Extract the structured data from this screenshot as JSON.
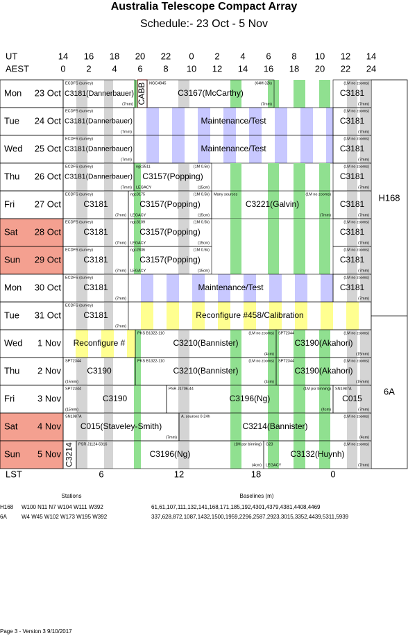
{
  "title": "Australia Telescope Compact Array",
  "subtitle": "Schedule:- 23 Oct - 5  Nov",
  "time_axis": {
    "ut_label": "UT",
    "aest_label": "AEST",
    "ut": [
      "14",
      "16",
      "18",
      "20",
      "22",
      "0",
      "2",
      "4",
      "6",
      "8",
      "10",
      "12",
      "14"
    ],
    "aest": [
      "0",
      "2",
      "4",
      "6",
      "8",
      "10",
      "12",
      "14",
      "16",
      "18",
      "20",
      "22",
      "24"
    ]
  },
  "days": [
    {
      "day": "Mon",
      "date": "23 Oct",
      "weekend": false,
      "blocks": [
        {
          "top": "ECDFS (survey)",
          "label": "C3181(Dannerbauer)",
          "bottom_right": "(7mm)"
        },
        {
          "label": "CABB",
          "vertical": true
        },
        {
          "top": "NGC4945",
          "top_right": "(64M 32k)",
          "label": "C3167(McCarthy)",
          "bottom_right": "(7mm)"
        },
        {
          "top_right": "(1M no zooms)",
          "label": "C3181",
          "bottom_right": "(7mm)"
        }
      ]
    },
    {
      "day": "Tue",
      "date": "24 Oct",
      "weekend": false,
      "blocks": [
        {
          "top": "ECDFS (survey)",
          "label": "C3181(Dannerbauer)",
          "bottom_right": "(7mm)"
        },
        {
          "label": "Maintenance/Test"
        },
        {
          "top_right": "(1M no zooms)",
          "label": "C3181",
          "bottom_right": "(7mm)"
        }
      ]
    },
    {
      "day": "Wed",
      "date": "25 Oct",
      "weekend": false,
      "blocks": [
        {
          "top": "ECDFS (survey)",
          "label": "C3181(Dannerbauer)",
          "bottom_right": "(7mm)"
        },
        {
          "label": "Maintenance/Test"
        },
        {
          "top_right": "(1M no zooms)",
          "label": "C3181",
          "bottom_right": "(7mm)"
        }
      ]
    },
    {
      "day": "Thu",
      "date": "26 Oct",
      "weekend": false,
      "blocks": [
        {
          "top": "ECDFS (survey)",
          "label": "C3181(Dannerbauer)",
          "bottom_right": "(7mm)"
        },
        {
          "top": "ngc3511",
          "top_right": "(1M 0.5k)",
          "label": "C3157(Popping)",
          "bottom_left": "LEGACY",
          "bottom_right": "(15cm)"
        },
        {
          "top_right": "(1M no zooms)",
          "label": "C3181",
          "bottom_right": "(7mm)"
        }
      ]
    },
    {
      "day": "Fri",
      "date": "27 Oct",
      "weekend": false,
      "blocks": [
        {
          "top": "ECDFS (survey)",
          "label": "C3181",
          "bottom_right": "(7mm)"
        },
        {
          "top": "ngc3175",
          "top_right": "(1M 0.5k)",
          "label": "C3157(Popping)",
          "bottom_left": "LEGACY",
          "bottom_right": "(15cm)"
        },
        {
          "top": "Many sources",
          "top_right": "(1M no zooms)",
          "label": "C3221(Galvin)",
          "bottom_right": "(7mm)"
        },
        {
          "label": "C3181",
          "bottom_right": "(7mm)"
        }
      ]
    },
    {
      "day": "Sat",
      "date": "28 Oct",
      "weekend": true,
      "blocks": [
        {
          "top": "ECDFS (survey)",
          "label": "C3181",
          "bottom_right": "(7mm)"
        },
        {
          "top": "ngc3109",
          "top_right": "(1M 0.5k)",
          "label": "C3157(Popping)",
          "bottom_left": "LEGACY",
          "bottom_right": "(15cm)"
        },
        {
          "top_right": "(1M no zooms)",
          "label": "C3181",
          "bottom_right": "(7mm)"
        }
      ]
    },
    {
      "day": "Sun",
      "date": "29 Oct",
      "weekend": true,
      "blocks": [
        {
          "top": "ECDFS (survey)",
          "label": "C3181",
          "bottom_right": "(7mm)"
        },
        {
          "top": "ngc2836",
          "top_right": "(1M 0.5k)",
          "label": "C3157(Popping)",
          "bottom_left": "LEGACY",
          "bottom_right": "(15cm)"
        },
        {
          "top_right": "(1M no zooms)",
          "label": "C3181",
          "bottom_right": "(7mm)"
        }
      ]
    },
    {
      "day": "Mon",
      "date": "30 Oct",
      "weekend": false,
      "blocks": [
        {
          "top": "ECDFS (survey)",
          "label": "C3181",
          "bottom_right": "(7mm)"
        },
        {
          "label": "Maintenance/Test"
        },
        {
          "top_right": "(1M no zooms)",
          "label": "C3181",
          "bottom_right": "(7mm)"
        }
      ]
    },
    {
      "day": "Tue",
      "date": "31 Oct",
      "weekend": false,
      "blocks": [
        {
          "top": "ECDFS (survey)",
          "label": "C3181",
          "bottom_right": "(7mm)"
        },
        {
          "label": "Reconfigure #458/Calibration"
        }
      ]
    },
    {
      "day": "Wed",
      "date": "1 Nov",
      "weekend": false,
      "blocks": [
        {
          "label": "Reconfigure #"
        },
        {
          "top": "PKS B1322-110",
          "top_right": "(1M no zooms)",
          "label": "C3210(Bannister)",
          "bottom_right": "(4cm)"
        },
        {
          "top": "SPT2344",
          "top_right": "(1M no zooms)",
          "label": "C3190(Akahori)",
          "bottom_right": "(15mm)"
        }
      ]
    },
    {
      "day": "Thu",
      "date": "2 Nov",
      "weekend": false,
      "blocks": [
        {
          "top": "SPT2344",
          "label": "C3190",
          "bottom_left": "(15mm)"
        },
        {
          "top": "PKS B1322-110",
          "top_right": "(1M no zooms)",
          "label": "C3210(Bannister)",
          "bottom_right": "(4cm)"
        },
        {
          "top": "SPT2344",
          "top_right": "(1M no zooms)",
          "label": "C3190(Akahori)",
          "bottom_right": "(15mm)"
        }
      ]
    },
    {
      "day": "Fri",
      "date": "3 Nov",
      "weekend": false,
      "blocks": [
        {
          "top": "SPT2344",
          "label": "C3190",
          "bottom_left": "(15mm)"
        },
        {
          "top": "PSR J1706-44",
          "top_right": "(1M psr binning)",
          "label": "C3196(Ng)",
          "bottom_right": "(4cm)"
        },
        {
          "top": "SN1987A",
          "label": "C015",
          "bottom_right": "(7mm)"
        }
      ]
    },
    {
      "day": "Sat",
      "date": "4 Nov",
      "weekend": true,
      "blocks": [
        {
          "top": "SN1987A",
          "label": "C015(Staveley-Smith)",
          "bottom_right": "(7mm)"
        },
        {
          "top": "A. sources 0-24h",
          "top_right": "(1M no zooms)",
          "label": "C3214(Bannister)",
          "bottom_right": "(4cm)"
        }
      ]
    },
    {
      "day": "Sun",
      "date": "5 Nov",
      "weekend": true,
      "blocks": [
        {
          "label": "C3214",
          "vertical": true
        },
        {
          "top": "PSR J1124-5916",
          "top_right": "(1M psr binning)",
          "label": "C3196(Ng)",
          "bottom_right": "(4cm)"
        },
        {
          "top": "G23",
          "top_right": "(1M no zooms)",
          "label": "C3132(Huynh)",
          "bottom_left": "LEGACY",
          "bottom_right": "(7mm)"
        }
      ]
    }
  ],
  "configs": [
    "H168",
    "6A"
  ],
  "lst": {
    "label": "LST",
    "ticks": [
      "6",
      "12",
      "18",
      "0"
    ]
  },
  "stations": {
    "stations_header": "Stations",
    "baselines_header": "Baselines (m)",
    "rows": [
      {
        "config": "H168",
        "stations": "W100 N11 N7 W104 W111 W392",
        "baselines": "61,61,107,111,132,141,168,171,185,192,4301,4379,4381,4408,4469"
      },
      {
        "config": "6A",
        "stations": "W4 W45 W102 W173 W195 W392",
        "baselines": "337,628,872,1087,1432,1500,1959,2296,2587,2923,3015,3352,4439,5311,5939"
      }
    ]
  },
  "footer": "Page 3 - Version 3  9/10/2017"
}
